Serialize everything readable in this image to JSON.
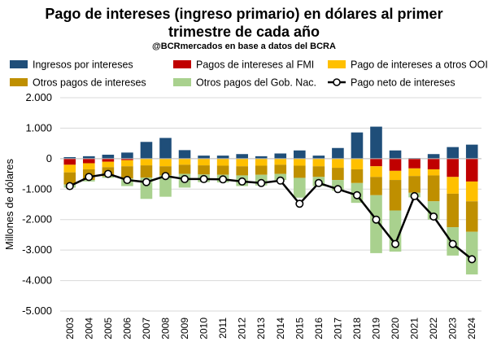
{
  "title_line1": "Pago de intereses (ingreso primario) en dólares al primer",
  "title_line2": "trimestre de cada año",
  "subtitle": "@BCRmercados en base a datos del BCRA",
  "chart_data": {
    "type": "bar",
    "stacked": true,
    "ylabel": "Millones de dólares",
    "xlabel": "",
    "ylim": [
      -5000,
      2000
    ],
    "yticks": [
      2000,
      1000,
      0,
      -1000,
      -2000,
      -3000,
      -4000,
      -5000
    ],
    "ytick_labels": [
      "2.000",
      "1.000",
      "0",
      "-1.000",
      "-2.000",
      "-3.000",
      "-4.000",
      "-5.000"
    ],
    "grid": true,
    "legend_position": "top",
    "categories": [
      "2003",
      "2004",
      "2005",
      "2006",
      "2007",
      "2008",
      "2009",
      "2010",
      "2011",
      "2012",
      "2013",
      "2014",
      "2015",
      "2016",
      "2017",
      "2018",
      "2019",
      "2020",
      "2021",
      "2022",
      "2023",
      "2024"
    ],
    "series": [
      {
        "name": "Ingresos por intereses",
        "color": "#1F4E79",
        "kind": "bar",
        "values": [
          50,
          80,
          130,
          200,
          550,
          680,
          280,
          100,
          100,
          150,
          80,
          170,
          270,
          100,
          350,
          860,
          1050,
          270,
          20,
          150,
          380,
          460
        ]
      },
      {
        "name": "Pagos de intereses al FMI",
        "color": "#C00000",
        "kind": "bar",
        "values": [
          -200,
          -150,
          -100,
          -50,
          0,
          0,
          0,
          0,
          0,
          0,
          0,
          0,
          0,
          0,
          0,
          0,
          -250,
          -400,
          -320,
          -350,
          -600,
          -750
        ]
      },
      {
        "name": "Pago de intereses a otros OOII",
        "color": "#FFC000",
        "kind": "bar",
        "values": [
          -250,
          -200,
          -180,
          -200,
          -220,
          -250,
          -200,
          -220,
          -230,
          -250,
          -230,
          -200,
          -230,
          -250,
          -300,
          -350,
          -350,
          -300,
          -250,
          -200,
          -550,
          -650
        ]
      },
      {
        "name": "Otros pagos de intereses",
        "color": "#BF8F00",
        "kind": "bar",
        "values": [
          -400,
          -350,
          -300,
          -400,
          -400,
          -300,
          -300,
          -300,
          -300,
          -300,
          -300,
          -300,
          -400,
          -350,
          -400,
          -450,
          -600,
          -1000,
          -550,
          -850,
          -1100,
          -1000
        ]
      },
      {
        "name": "Otros pagos del Gob. Nac.",
        "color": "#A9D18E",
        "kind": "bar",
        "values": [
          -100,
          -50,
          -50,
          -250,
          -700,
          -700,
          -450,
          -250,
          -250,
          -350,
          -350,
          -200,
          -650,
          -300,
          -350,
          -650,
          -1900,
          -1350,
          -150,
          -600,
          -930,
          -1400
        ]
      },
      {
        "name": "Pago neto de intereses",
        "color": "#000000",
        "kind": "line",
        "values": [
          -900,
          -600,
          -500,
          -700,
          -770,
          -570,
          -670,
          -670,
          -680,
          -750,
          -800,
          -720,
          -1480,
          -800,
          -1000,
          -1200,
          -2000,
          -2800,
          -1230,
          -1900,
          -2800,
          -3300
        ]
      }
    ]
  }
}
